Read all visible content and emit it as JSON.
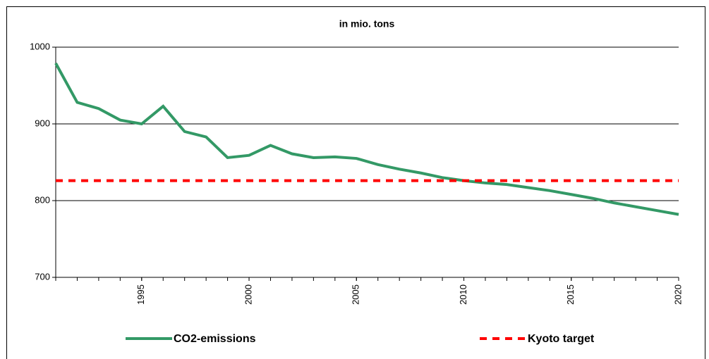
{
  "chart_data": {
    "type": "line",
    "title": "in mio. tons",
    "x": [
      1991,
      1992,
      1993,
      1994,
      1995,
      1996,
      1997,
      1998,
      1999,
      2000,
      2001,
      2002,
      2003,
      2004,
      2005,
      2006,
      2007,
      2008,
      2009,
      2010,
      2011,
      2012,
      2013,
      2014,
      2015,
      2016,
      2017,
      2018,
      2019,
      2020
    ],
    "series": [
      {
        "name": "CO2-emissions",
        "color": "#339966",
        "dash": false,
        "values": [
          979,
          928,
          920,
          905,
          900,
          923,
          890,
          883,
          856,
          859,
          872,
          861,
          856,
          857,
          855,
          847,
          841,
          836,
          830,
          826,
          823,
          821,
          817,
          813,
          808,
          803,
          797,
          792,
          787,
          782
        ]
      },
      {
        "name": "Kyoto target",
        "color": "#ff0000",
        "dash": true,
        "values": [
          826,
          826,
          826,
          826,
          826,
          826,
          826,
          826,
          826,
          826,
          826,
          826,
          826,
          826,
          826,
          826,
          826,
          826,
          826,
          826,
          826,
          826,
          826,
          826,
          826,
          826,
          826,
          826,
          826,
          826
        ]
      }
    ],
    "xlim": [
      1991,
      2020
    ],
    "xticks": [
      1995,
      2000,
      2005,
      2010,
      2015,
      2020
    ],
    "ylim": [
      700,
      1000
    ],
    "yticks": [
      700,
      800,
      900,
      1000
    ],
    "grid": true,
    "legend": "bottom"
  }
}
